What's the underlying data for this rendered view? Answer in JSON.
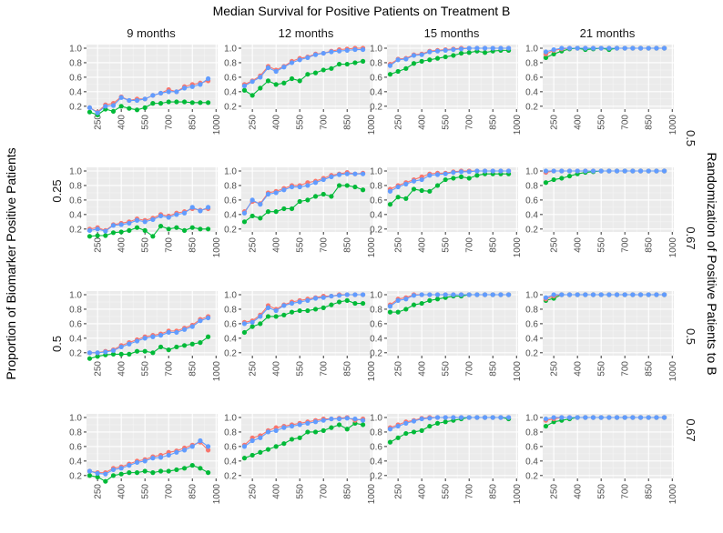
{
  "chart_data": {
    "type": "line",
    "title": "Median Survival for Positive Patients on Treatment B",
    "xlabel": "",
    "ylabel": "Proportion of Biomarker Positive Patients",
    "right_label": "Randomization of Positive Patients to B",
    "col_facets": [
      "9 months",
      "12 months",
      "15 months",
      "21 months"
    ],
    "row_facets": [
      {
        "prop": "0.25",
        "rand": "0.5"
      },
      {
        "prop": "0.25",
        "rand": "0.67"
      },
      {
        "prop": "0.5",
        "rand": "0.5"
      },
      {
        "prop": "0.5",
        "rand": "0.67"
      }
    ],
    "x": [
      200,
      250,
      300,
      350,
      400,
      450,
      500,
      550,
      600,
      650,
      700,
      750,
      800,
      850,
      900,
      950
    ],
    "x_ticks": [
      "250",
      "400",
      "550",
      "700",
      "850",
      "1000"
    ],
    "x_tick_values": [
      250,
      400,
      550,
      700,
      850,
      1000
    ],
    "xlim": [
      180,
      1010
    ],
    "y_ticks": [
      "0.2",
      "0.4",
      "0.6",
      "0.8",
      "1.0"
    ],
    "y_tick_values": [
      0.2,
      0.4,
      0.6,
      0.8,
      1.0
    ],
    "ylim": [
      0.16,
      1.05
    ],
    "grid": true,
    "legend": "none",
    "colors": {
      "red": "#F8766D",
      "blue": "#619CFF",
      "green": "#00BA38",
      "panel_bg": "#EBEBEB"
    },
    "panels": [
      {
        "row": 0,
        "col": 0,
        "red": [
          0.18,
          0.12,
          0.22,
          0.24,
          0.33,
          0.28,
          0.3,
          0.3,
          0.35,
          0.38,
          0.43,
          0.4,
          0.47,
          0.5,
          0.52,
          0.55
        ],
        "blue": [
          0.18,
          0.11,
          0.2,
          0.21,
          0.32,
          0.28,
          0.28,
          0.3,
          0.35,
          0.38,
          0.4,
          0.4,
          0.45,
          0.47,
          0.5,
          0.58
        ],
        "green": [
          0.12,
          0.08,
          0.16,
          0.13,
          0.2,
          0.17,
          0.15,
          0.18,
          0.24,
          0.24,
          0.26,
          0.26,
          0.26,
          0.25,
          0.25,
          0.25
        ]
      },
      {
        "row": 0,
        "col": 1,
        "red": [
          0.5,
          0.55,
          0.62,
          0.75,
          0.7,
          0.75,
          0.82,
          0.86,
          0.88,
          0.92,
          0.93,
          0.96,
          0.98,
          0.99,
          1.0,
          1.0
        ],
        "blue": [
          0.48,
          0.54,
          0.6,
          0.73,
          0.68,
          0.74,
          0.8,
          0.84,
          0.87,
          0.91,
          0.93,
          0.95,
          0.96,
          0.97,
          0.98,
          0.98
        ],
        "green": [
          0.42,
          0.35,
          0.45,
          0.55,
          0.5,
          0.52,
          0.58,
          0.55,
          0.64,
          0.66,
          0.7,
          0.72,
          0.78,
          0.78,
          0.8,
          0.82
        ]
      },
      {
        "row": 0,
        "col": 2,
        "red": [
          0.78,
          0.85,
          0.86,
          0.91,
          0.92,
          0.96,
          0.97,
          0.98,
          0.99,
          1.0,
          1.0,
          1.0,
          1.0,
          1.0,
          1.0,
          1.0
        ],
        "blue": [
          0.76,
          0.84,
          0.85,
          0.9,
          0.91,
          0.95,
          0.96,
          0.97,
          0.98,
          0.99,
          1.0,
          1.0,
          1.0,
          1.0,
          1.0,
          1.0
        ],
        "green": [
          0.64,
          0.68,
          0.72,
          0.79,
          0.82,
          0.84,
          0.86,
          0.88,
          0.9,
          0.93,
          0.94,
          0.96,
          0.94,
          0.96,
          0.97,
          0.97
        ]
      },
      {
        "row": 0,
        "col": 3,
        "red": [
          0.92,
          0.97,
          0.99,
          1.0,
          1.0,
          1.0,
          1.0,
          1.0,
          1.0,
          1.0,
          1.0,
          1.0,
          1.0,
          1.0,
          1.0,
          1.0
        ],
        "blue": [
          0.95,
          0.98,
          1.0,
          1.0,
          1.0,
          1.0,
          1.0,
          1.0,
          1.0,
          1.0,
          1.0,
          1.0,
          1.0,
          1.0,
          1.0,
          1.0
        ],
        "green": [
          0.87,
          0.92,
          0.96,
          0.99,
          1.0,
          0.98,
          0.99,
          1.0,
          0.98,
          1.0,
          1.0,
          1.0,
          1.0,
          1.0,
          1.0,
          1.0
        ]
      },
      {
        "row": 1,
        "col": 0,
        "red": [
          0.2,
          0.22,
          0.18,
          0.26,
          0.28,
          0.3,
          0.34,
          0.32,
          0.35,
          0.4,
          0.38,
          0.42,
          0.44,
          0.48,
          0.46,
          0.48
        ],
        "blue": [
          0.18,
          0.2,
          0.17,
          0.25,
          0.26,
          0.28,
          0.32,
          0.3,
          0.33,
          0.38,
          0.36,
          0.4,
          0.42,
          0.5,
          0.45,
          0.5
        ],
        "green": [
          0.1,
          0.11,
          0.11,
          0.15,
          0.16,
          0.18,
          0.22,
          0.18,
          0.1,
          0.24,
          0.2,
          0.22,
          0.18,
          0.22,
          0.2,
          0.2
        ]
      },
      {
        "row": 1,
        "col": 1,
        "red": [
          0.44,
          0.58,
          0.55,
          0.7,
          0.72,
          0.76,
          0.8,
          0.8,
          0.84,
          0.86,
          0.9,
          0.94,
          0.96,
          0.98,
          0.96,
          0.97
        ],
        "blue": [
          0.42,
          0.6,
          0.54,
          0.68,
          0.7,
          0.74,
          0.78,
          0.78,
          0.8,
          0.84,
          0.88,
          0.92,
          0.95,
          0.96,
          0.96,
          0.96
        ],
        "green": [
          0.3,
          0.38,
          0.35,
          0.44,
          0.44,
          0.48,
          0.48,
          0.58,
          0.6,
          0.65,
          0.68,
          0.65,
          0.8,
          0.8,
          0.78,
          0.74
        ]
      },
      {
        "row": 1,
        "col": 2,
        "red": [
          0.75,
          0.8,
          0.84,
          0.88,
          0.92,
          0.96,
          0.97,
          0.97,
          0.99,
          1.0,
          1.0,
          1.0,
          1.0,
          1.0,
          1.0,
          1.0
        ],
        "blue": [
          0.72,
          0.78,
          0.82,
          0.86,
          0.88,
          0.94,
          0.95,
          0.96,
          0.98,
          0.99,
          0.99,
          1.0,
          1.0,
          1.0,
          1.0,
          1.0
        ],
        "green": [
          0.54,
          0.64,
          0.62,
          0.75,
          0.73,
          0.72,
          0.8,
          0.88,
          0.9,
          0.92,
          0.9,
          0.94,
          0.96,
          0.96,
          0.96,
          0.96
        ]
      },
      {
        "row": 1,
        "col": 3,
        "red": [
          0.98,
          1.0,
          1.0,
          1.0,
          1.0,
          1.0,
          1.0,
          1.0,
          1.0,
          1.0,
          1.0,
          1.0,
          1.0,
          1.0,
          1.0,
          1.0
        ],
        "blue": [
          1.0,
          1.0,
          1.0,
          1.0,
          1.0,
          1.0,
          1.0,
          1.0,
          1.0,
          1.0,
          1.0,
          1.0,
          1.0,
          1.0,
          1.0,
          1.0
        ],
        "green": [
          0.84,
          0.88,
          0.9,
          0.93,
          0.96,
          0.98,
          0.99,
          1.0,
          1.0,
          1.0,
          1.0,
          1.0,
          1.0,
          1.0,
          1.0,
          1.0
        ]
      },
      {
        "row": 2,
        "col": 0,
        "red": [
          0.2,
          0.2,
          0.22,
          0.24,
          0.3,
          0.34,
          0.38,
          0.42,
          0.44,
          0.46,
          0.5,
          0.5,
          0.54,
          0.58,
          0.66,
          0.7
        ],
        "blue": [
          0.2,
          0.2,
          0.21,
          0.23,
          0.28,
          0.32,
          0.36,
          0.4,
          0.42,
          0.44,
          0.48,
          0.48,
          0.52,
          0.56,
          0.64,
          0.68
        ],
        "green": [
          0.12,
          0.15,
          0.17,
          0.18,
          0.18,
          0.18,
          0.22,
          0.22,
          0.2,
          0.28,
          0.24,
          0.28,
          0.3,
          0.32,
          0.34,
          0.42
        ]
      },
      {
        "row": 2,
        "col": 1,
        "red": [
          0.62,
          0.64,
          0.72,
          0.85,
          0.8,
          0.86,
          0.9,
          0.92,
          0.94,
          0.96,
          0.98,
          0.98,
          1.0,
          1.0,
          1.0,
          1.0
        ],
        "blue": [
          0.6,
          0.62,
          0.7,
          0.82,
          0.78,
          0.85,
          0.88,
          0.9,
          0.92,
          0.95,
          0.96,
          0.98,
          0.99,
          1.0,
          1.0,
          1.0
        ],
        "green": [
          0.48,
          0.56,
          0.6,
          0.7,
          0.7,
          0.72,
          0.76,
          0.78,
          0.78,
          0.8,
          0.82,
          0.86,
          0.9,
          0.92,
          0.88,
          0.88
        ]
      },
      {
        "row": 2,
        "col": 2,
        "red": [
          0.86,
          0.94,
          0.96,
          1.0,
          1.0,
          1.0,
          1.0,
          1.0,
          1.0,
          1.0,
          1.0,
          1.0,
          1.0,
          1.0,
          1.0,
          1.0
        ],
        "blue": [
          0.84,
          0.92,
          0.94,
          0.99,
          1.0,
          1.0,
          1.0,
          1.0,
          1.0,
          1.0,
          1.0,
          1.0,
          1.0,
          1.0,
          1.0,
          1.0
        ],
        "green": [
          0.76,
          0.76,
          0.8,
          0.86,
          0.88,
          0.92,
          0.94,
          0.96,
          0.98,
          0.98,
          1.0,
          1.0,
          1.0,
          1.0,
          1.0,
          1.0
        ]
      },
      {
        "row": 2,
        "col": 3,
        "red": [
          0.94,
          0.98,
          1.0,
          1.0,
          1.0,
          1.0,
          1.0,
          1.0,
          1.0,
          1.0,
          1.0,
          1.0,
          1.0,
          1.0,
          1.0,
          1.0
        ],
        "blue": [
          0.96,
          1.0,
          1.0,
          1.0,
          1.0,
          1.0,
          1.0,
          1.0,
          1.0,
          1.0,
          1.0,
          1.0,
          1.0,
          1.0,
          1.0,
          1.0
        ],
        "green": [
          0.92,
          0.95,
          1.0,
          1.0,
          1.0,
          1.0,
          1.0,
          1.0,
          1.0,
          1.0,
          1.0,
          1.0,
          1.0,
          1.0,
          1.0,
          1.0
        ]
      },
      {
        "row": 3,
        "col": 0,
        "red": [
          0.26,
          0.24,
          0.24,
          0.3,
          0.32,
          0.36,
          0.4,
          0.42,
          0.46,
          0.48,
          0.52,
          0.54,
          0.58,
          0.62,
          0.66,
          0.55
        ],
        "blue": [
          0.26,
          0.23,
          0.22,
          0.28,
          0.3,
          0.34,
          0.38,
          0.4,
          0.44,
          0.45,
          0.48,
          0.52,
          0.55,
          0.6,
          0.68,
          0.6
        ],
        "green": [
          0.2,
          0.18,
          0.12,
          0.2,
          0.22,
          0.24,
          0.24,
          0.26,
          0.24,
          0.26,
          0.26,
          0.28,
          0.3,
          0.34,
          0.3,
          0.24
        ]
      },
      {
        "row": 3,
        "col": 1,
        "red": [
          0.62,
          0.72,
          0.75,
          0.82,
          0.86,
          0.88,
          0.9,
          0.92,
          0.94,
          0.96,
          0.98,
          0.98,
          0.99,
          1.0,
          0.96,
          0.98
        ],
        "blue": [
          0.6,
          0.68,
          0.72,
          0.8,
          0.82,
          0.86,
          0.88,
          0.9,
          0.92,
          0.94,
          0.96,
          0.98,
          0.98,
          0.99,
          0.98,
          0.96
        ],
        "green": [
          0.44,
          0.48,
          0.52,
          0.56,
          0.6,
          0.64,
          0.7,
          0.72,
          0.8,
          0.8,
          0.82,
          0.86,
          0.9,
          0.84,
          0.92,
          0.9
        ]
      },
      {
        "row": 3,
        "col": 2,
        "red": [
          0.86,
          0.9,
          0.94,
          0.96,
          0.99,
          1.0,
          1.0,
          1.0,
          1.0,
          1.0,
          1.0,
          1.0,
          1.0,
          1.0,
          1.0,
          1.0
        ],
        "blue": [
          0.84,
          0.88,
          0.92,
          0.95,
          0.98,
          0.99,
          1.0,
          1.0,
          1.0,
          1.0,
          1.0,
          1.0,
          1.0,
          1.0,
          1.0,
          1.0
        ],
        "green": [
          0.66,
          0.72,
          0.78,
          0.8,
          0.82,
          0.88,
          0.92,
          0.94,
          0.96,
          0.98,
          1.0,
          1.0,
          1.0,
          1.0,
          1.0,
          0.98
        ]
      },
      {
        "row": 3,
        "col": 3,
        "red": [
          0.96,
          0.98,
          1.0,
          1.0,
          1.0,
          1.0,
          1.0,
          1.0,
          1.0,
          1.0,
          1.0,
          1.0,
          1.0,
          1.0,
          1.0,
          1.0
        ],
        "blue": [
          0.98,
          1.0,
          1.0,
          1.0,
          1.0,
          1.0,
          1.0,
          1.0,
          1.0,
          1.0,
          1.0,
          1.0,
          1.0,
          1.0,
          1.0,
          1.0
        ],
        "green": [
          0.88,
          0.94,
          0.96,
          0.98,
          1.0,
          1.0,
          1.0,
          1.0,
          1.0,
          1.0,
          1.0,
          1.0,
          1.0,
          1.0,
          1.0,
          1.0
        ]
      }
    ]
  }
}
